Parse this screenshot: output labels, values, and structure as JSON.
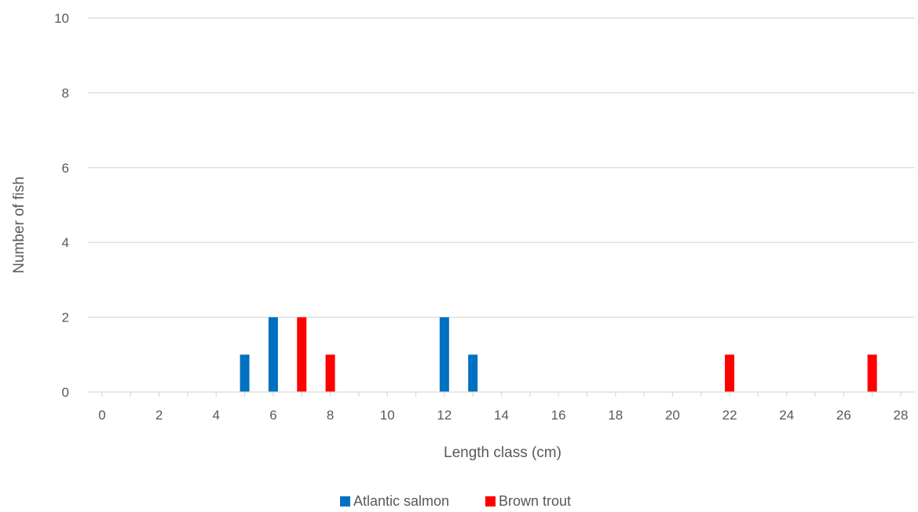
{
  "chart_data": {
    "type": "bar",
    "title": "",
    "xlabel": "Length class (cm)",
    "ylabel": "Number of fish",
    "xlim": [
      0,
      28
    ],
    "ylim": [
      0,
      10
    ],
    "x_ticks": [
      0,
      2,
      4,
      6,
      8,
      10,
      12,
      14,
      16,
      18,
      20,
      22,
      24,
      26,
      28
    ],
    "y_ticks": [
      0,
      2,
      4,
      6,
      8,
      10
    ],
    "grid": "horizontal",
    "legend": "bottom",
    "series": [
      {
        "name": "Atlantic salmon",
        "color": "#0070C0",
        "points": [
          {
            "x": 5,
            "y": 1
          },
          {
            "x": 6,
            "y": 2
          },
          {
            "x": 12,
            "y": 2
          },
          {
            "x": 13,
            "y": 1
          }
        ]
      },
      {
        "name": "Brown trout",
        "color": "#FF0000",
        "points": [
          {
            "x": 7,
            "y": 2
          },
          {
            "x": 8,
            "y": 1
          },
          {
            "x": 22,
            "y": 1
          },
          {
            "x": 27,
            "y": 1
          }
        ]
      }
    ]
  }
}
